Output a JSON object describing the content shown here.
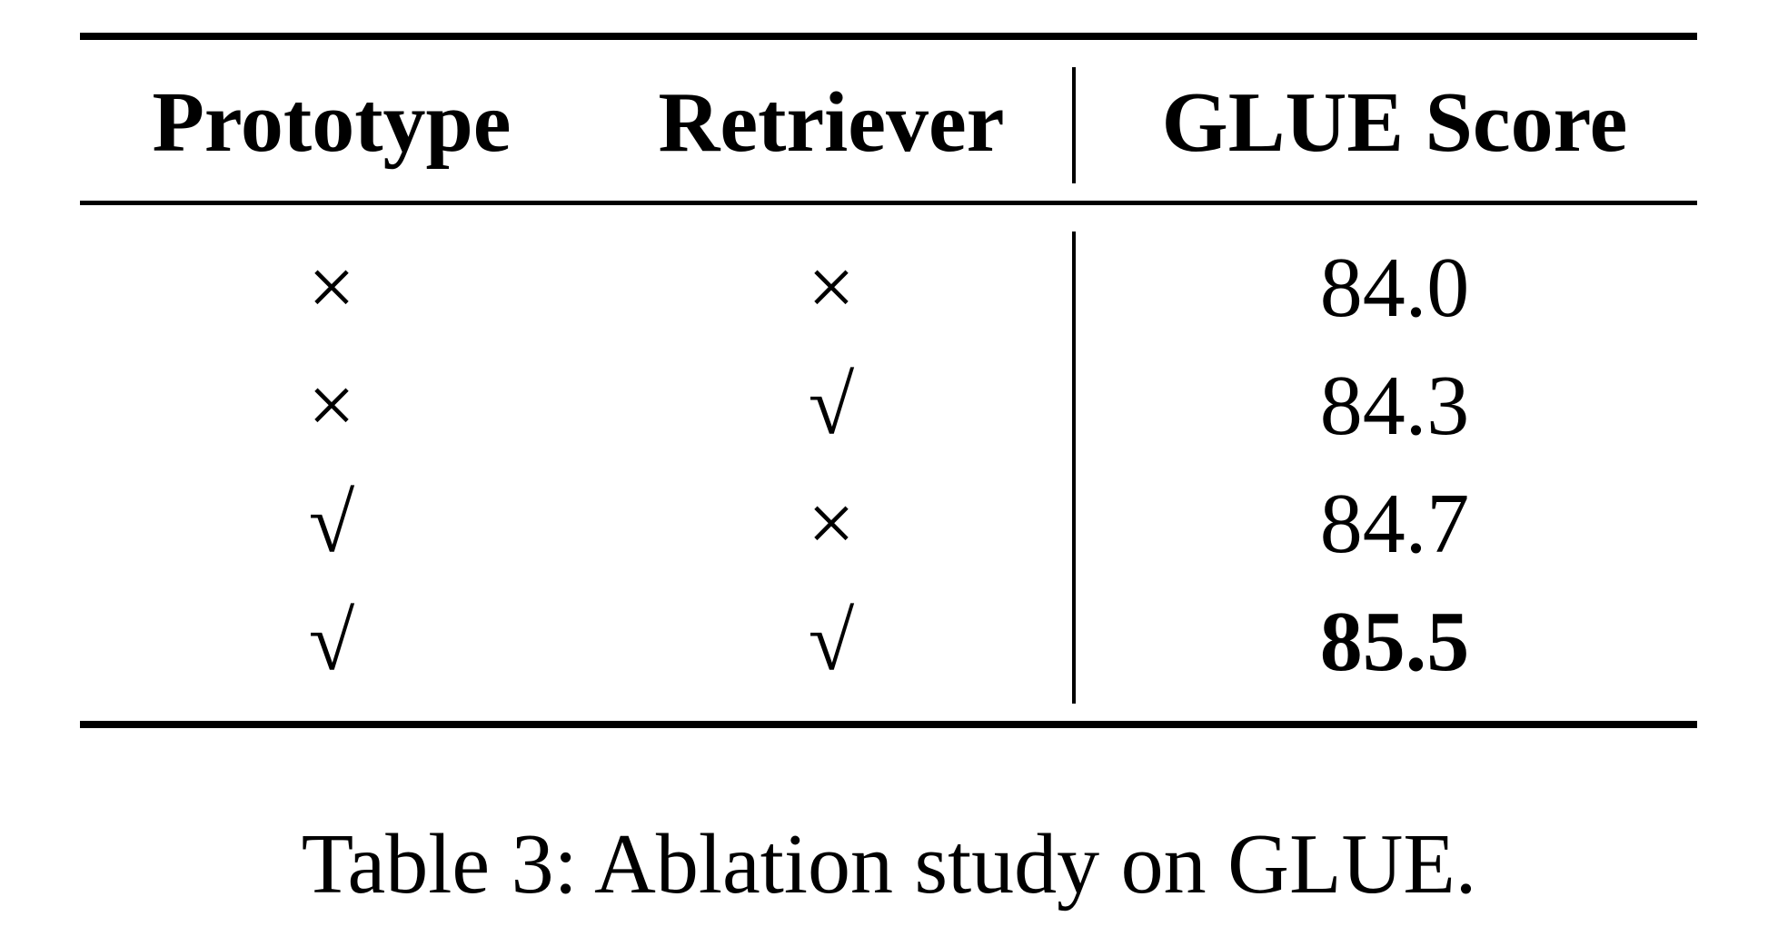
{
  "table": {
    "headers": [
      "Prototype",
      "Retriever",
      "GLUE Score"
    ],
    "rows": [
      {
        "prototype": "×",
        "retriever": "×",
        "score": "84.0"
      },
      {
        "prototype": "×",
        "retriever": "√",
        "score": "84.3"
      },
      {
        "prototype": "√",
        "retriever": "×",
        "score": "84.7"
      },
      {
        "prototype": "√",
        "retriever": "√",
        "score": "85.5"
      }
    ],
    "best_row_index": 3
  },
  "caption": "Table 3:  Ablation study on GLUE."
}
